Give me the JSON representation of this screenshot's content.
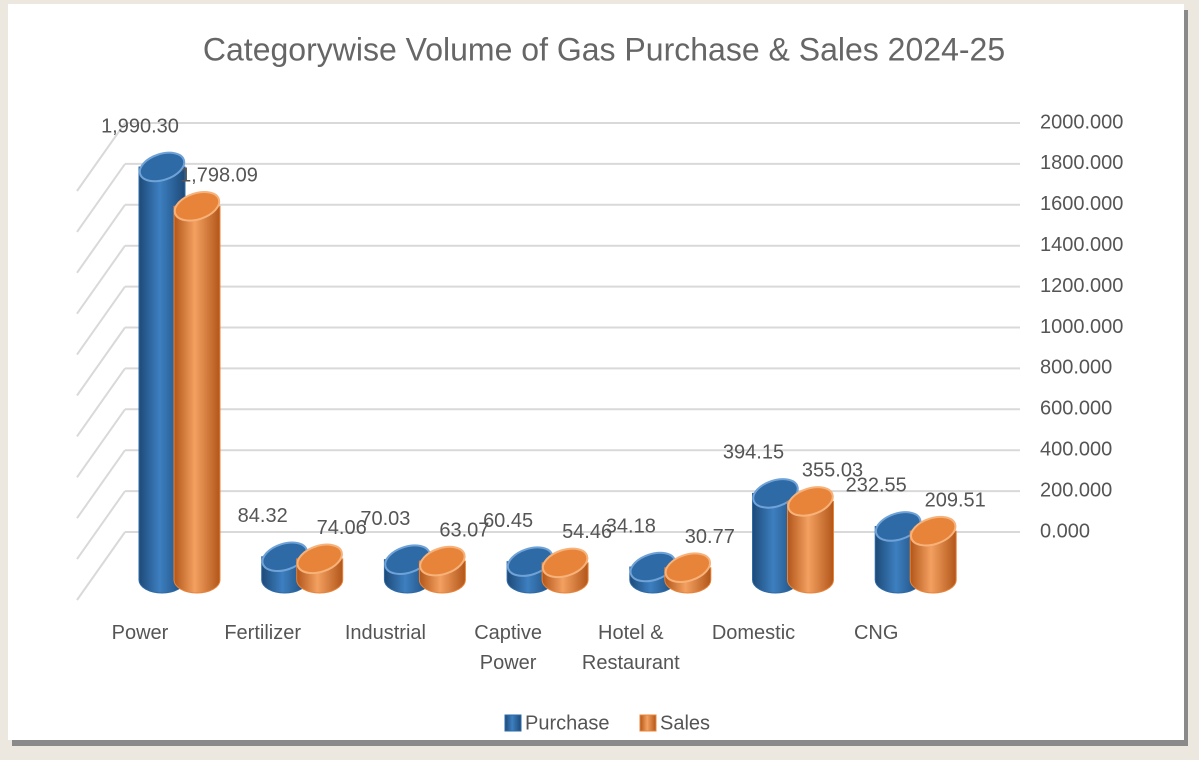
{
  "chart_data": {
    "type": "bar3d",
    "title": "Categorywise Volume of Gas Purchase & Sales 2024-25",
    "categories": [
      "Power",
      "Fertilizer",
      "Industrial",
      "Captive Power",
      "Hotel & Restaurant",
      "Domestic",
      "CNG"
    ],
    "series": [
      {
        "name": "Purchase",
        "color": "#2e6aa6",
        "values": [
          1990.3,
          84.32,
          70.03,
          60.45,
          34.18,
          394.15,
          232.55
        ],
        "value_labels": [
          "1,990.30",
          "84.32",
          "70.03",
          "60.45",
          "34.18",
          "394.15",
          "232.55"
        ]
      },
      {
        "name": "Sales",
        "color": "#e8843a",
        "values": [
          1798.09,
          74.06,
          63.07,
          54.46,
          30.77,
          355.03,
          209.51
        ],
        "value_labels": [
          "1,798.09",
          "74.06",
          "63.07",
          "54.46",
          "30.77",
          "355.03",
          "209.51"
        ]
      }
    ],
    "ylim": [
      0,
      2000
    ],
    "yticks": [
      {
        "value": 0,
        "label": "0.000"
      },
      {
        "value": 200,
        "label": "200.000"
      },
      {
        "value": 400,
        "label": "400.000"
      },
      {
        "value": 600,
        "label": "600.000"
      },
      {
        "value": 800,
        "label": "800.000"
      },
      {
        "value": 1000,
        "label": "1000.000"
      },
      {
        "value": 1200,
        "label": "1200.000"
      },
      {
        "value": 1400,
        "label": "1400.000"
      },
      {
        "value": 1600,
        "label": "1600.000"
      },
      {
        "value": 1800,
        "label": "1800.000"
      },
      {
        "value": 2000,
        "label": "2000.000"
      }
    ],
    "grid": true,
    "legend": "bottom"
  }
}
